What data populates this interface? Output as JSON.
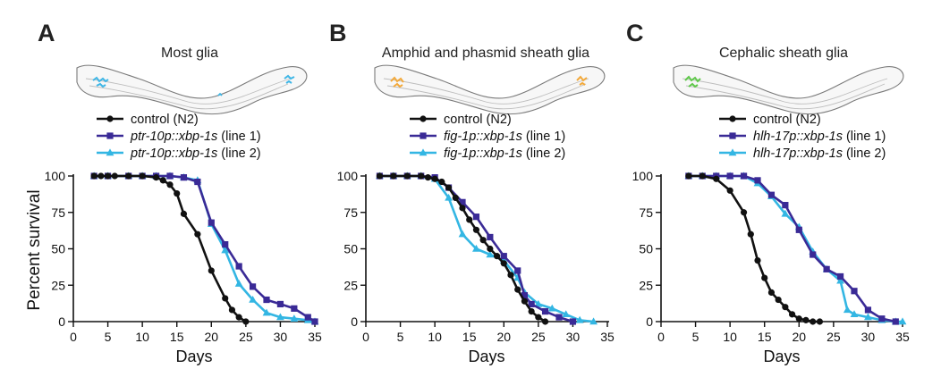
{
  "panels": [
    {
      "letter": "A",
      "title": "Most glia",
      "glia_color": "#3fb6e6"
    },
    {
      "letter": "B",
      "title": "Amphid and phasmid sheath glia",
      "glia_color": "#f2a93b"
    },
    {
      "letter": "C",
      "title": "Cephalic sheath glia",
      "glia_color": "#5fc84a"
    }
  ],
  "ylabel": "Percent survival",
  "chart_data": [
    {
      "type": "line",
      "xlabel": "Days",
      "ylabel": "Percent survival",
      "xlim": [
        0,
        35
      ],
      "ylim": [
        0,
        100
      ],
      "xticks": [
        0,
        5,
        10,
        15,
        20,
        25,
        30,
        35
      ],
      "yticks": [
        0,
        25,
        50,
        75,
        100
      ],
      "legend": [
        {
          "italic": "",
          "plain": "control (N2)",
          "color": "#111111",
          "marker": "circle"
        },
        {
          "italic": "ptr-10p::xbp-1s",
          "plain": " (line 1)",
          "color": "#3a2a96",
          "marker": "square"
        },
        {
          "italic": "ptr-10p::xbp-1s",
          "plain": " (line 2)",
          "color": "#33b6e3",
          "marker": "triangle"
        }
      ],
      "series": [
        {
          "name": "control (N2)",
          "color": "#111111",
          "marker": "circle",
          "x": [
            3,
            4,
            5,
            6,
            8,
            10,
            12,
            13,
            14,
            15,
            16,
            18,
            20,
            22,
            23,
            24,
            25
          ],
          "y": [
            100,
            100,
            100,
            100,
            100,
            100,
            99,
            97,
            94,
            88,
            74,
            60,
            35,
            16,
            8,
            3,
            0
          ]
        },
        {
          "name": "ptr-10p::xbp-1s (line 1)",
          "color": "#3a2a96",
          "marker": "square",
          "x": [
            3,
            5,
            8,
            10,
            12,
            14,
            16,
            18,
            20,
            22,
            24,
            26,
            28,
            30,
            32,
            34,
            35
          ],
          "y": [
            100,
            100,
            100,
            100,
            100,
            100,
            99,
            96,
            68,
            53,
            38,
            24,
            15,
            12,
            9,
            3,
            0
          ]
        },
        {
          "name": "ptr-10p::xbp-1s (line 2)",
          "color": "#33b6e3",
          "marker": "triangle",
          "x": [
            3,
            5,
            8,
            10,
            12,
            14,
            16,
            18,
            20,
            22,
            24,
            26,
            28,
            30,
            32,
            34,
            35
          ],
          "y": [
            100,
            100,
            100,
            100,
            100,
            100,
            99,
            97,
            67,
            49,
            26,
            15,
            6,
            3,
            2,
            1,
            0
          ]
        }
      ]
    },
    {
      "type": "line",
      "xlabel": "Days",
      "ylabel": "",
      "xlim": [
        0,
        35
      ],
      "ylim": [
        0,
        100
      ],
      "xticks": [
        0,
        5,
        10,
        15,
        20,
        25,
        30,
        35
      ],
      "yticks": [
        0,
        25,
        50,
        75,
        100
      ],
      "legend": [
        {
          "italic": "",
          "plain": "control (N2)",
          "color": "#111111",
          "marker": "circle"
        },
        {
          "italic": "fig-1p::xbp-1s",
          "plain": " (line 1)",
          "color": "#3a2a96",
          "marker": "square"
        },
        {
          "italic": "fig-1p::xbp-1s",
          "plain": " (line 2)",
          "color": "#33b6e3",
          "marker": "triangle"
        }
      ],
      "series": [
        {
          "name": "control (N2)",
          "color": "#111111",
          "marker": "circle",
          "x": [
            2,
            4,
            6,
            8,
            9,
            10,
            11,
            12,
            13,
            14,
            15,
            16,
            17,
            18,
            19,
            20,
            21,
            22,
            23,
            24,
            25,
            26
          ],
          "y": [
            100,
            100,
            100,
            100,
            99,
            98,
            96,
            92,
            85,
            78,
            70,
            63,
            56,
            50,
            45,
            40,
            32,
            22,
            14,
            7,
            3,
            0
          ]
        },
        {
          "name": "fig-1p::xbp-1s (line 1)",
          "color": "#3a2a96",
          "marker": "square",
          "x": [
            2,
            4,
            6,
            8,
            10,
            12,
            14,
            16,
            18,
            20,
            22,
            23,
            24,
            26,
            28,
            30
          ],
          "y": [
            100,
            100,
            100,
            100,
            99,
            92,
            82,
            72,
            58,
            45,
            35,
            18,
            12,
            7,
            3,
            0
          ]
        },
        {
          "name": "fig-1p::xbp-1s (line 2)",
          "color": "#33b6e3",
          "marker": "triangle",
          "x": [
            2,
            4,
            6,
            8,
            10,
            12,
            14,
            16,
            18,
            20,
            22,
            23,
            25,
            27,
            29,
            31,
            33
          ],
          "y": [
            100,
            100,
            100,
            100,
            98,
            85,
            60,
            50,
            46,
            42,
            30,
            20,
            12,
            9,
            5,
            1,
            0
          ]
        }
      ]
    },
    {
      "type": "line",
      "xlabel": "Days",
      "ylabel": "",
      "xlim": [
        0,
        35
      ],
      "ylim": [
        0,
        100
      ],
      "xticks": [
        0,
        5,
        10,
        15,
        20,
        25,
        30,
        35
      ],
      "yticks": [
        0,
        25,
        50,
        75,
        100
      ],
      "legend": [
        {
          "italic": "",
          "plain": "control (N2)",
          "color": "#111111",
          "marker": "circle"
        },
        {
          "italic": "hlh-17p::xbp-1s",
          "plain": " (line 1)",
          "color": "#3a2a96",
          "marker": "square"
        },
        {
          "italic": "hlh-17p::xbp-1s",
          "plain": " (line 2)",
          "color": "#33b6e3",
          "marker": "triangle"
        }
      ],
      "series": [
        {
          "name": "control (N2)",
          "color": "#111111",
          "marker": "circle",
          "x": [
            4,
            6,
            8,
            10,
            12,
            13,
            14,
            15,
            16,
            17,
            18,
            19,
            20,
            21,
            22,
            23
          ],
          "y": [
            100,
            100,
            98,
            90,
            75,
            60,
            42,
            30,
            20,
            15,
            10,
            5,
            2,
            1,
            0,
            0
          ]
        },
        {
          "name": "hlh-17p::xbp-1s (line 1)",
          "color": "#3a2a96",
          "marker": "square",
          "x": [
            4,
            6,
            8,
            10,
            12,
            14,
            16,
            18,
            20,
            22,
            24,
            26,
            28,
            30,
            32,
            34
          ],
          "y": [
            100,
            100,
            100,
            100,
            100,
            97,
            87,
            80,
            63,
            46,
            36,
            31,
            21,
            8,
            2,
            0
          ]
        },
        {
          "name": "hlh-17p::xbp-1s (line 2)",
          "color": "#33b6e3",
          "marker": "triangle",
          "x": [
            4,
            6,
            8,
            10,
            12,
            14,
            16,
            18,
            20,
            22,
            24,
            26,
            27,
            28,
            30,
            32,
            34,
            35
          ],
          "y": [
            100,
            100,
            100,
            100,
            100,
            95,
            86,
            74,
            65,
            48,
            36,
            28,
            8,
            5,
            3,
            1,
            0,
            0
          ]
        }
      ]
    }
  ]
}
